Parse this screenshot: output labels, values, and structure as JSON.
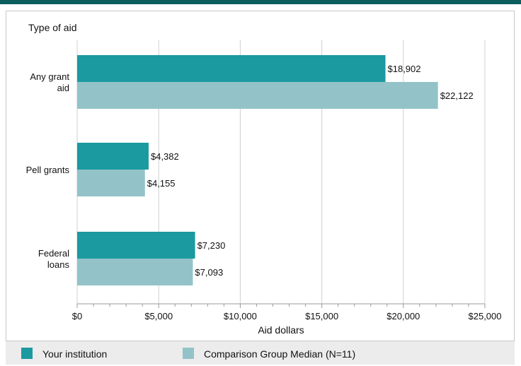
{
  "chart_data": {
    "type": "bar",
    "orientation": "horizontal",
    "ytitle": "Type of aid",
    "xlabel": "Aid dollars",
    "categories": [
      "Any grant aid",
      "Pell grants",
      "Federal loans"
    ],
    "series": [
      {
        "name": "Your institution",
        "color": "#1b9aa0",
        "values": [
          18902,
          4382,
          7230
        ],
        "labels": [
          "$18,902",
          "$4,382",
          "$7,230"
        ]
      },
      {
        "name": "Comparison Group Median (N=11)",
        "color": "#93c3c8",
        "values": [
          22122,
          4155,
          7093
        ],
        "labels": [
          "$22,122",
          "$4,155",
          "$7,093"
        ]
      }
    ],
    "xlim": [
      0,
      25000
    ],
    "xticks": [
      0,
      5000,
      10000,
      15000,
      20000,
      25000
    ],
    "xtick_labels": [
      "$0",
      "$5,000",
      "$10,000",
      "$15,000",
      "$20,000",
      "$25,000"
    ],
    "grid": true,
    "legend_position": "bottom"
  },
  "colors": {
    "top_bar": "#0b5e5e",
    "grid": "#d0d0d0",
    "legend_bg": "#ececec"
  }
}
